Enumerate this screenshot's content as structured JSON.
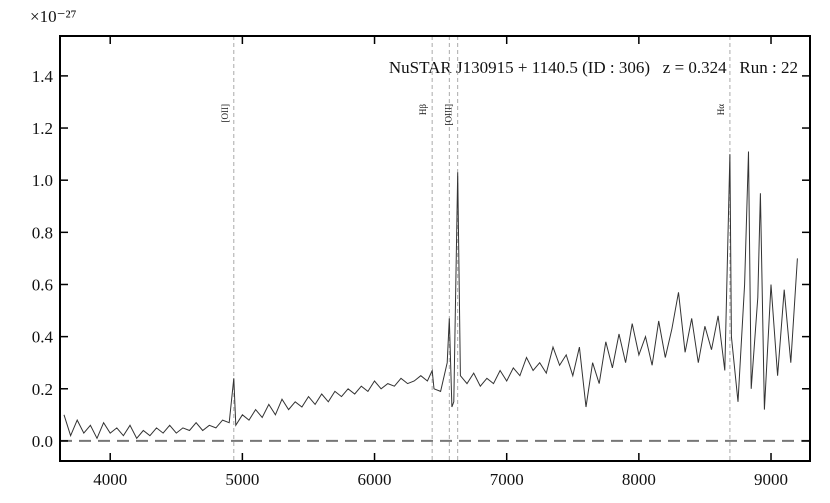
{
  "chart_data": {
    "type": "line",
    "title": "NuSTAR J130915 + 1140.5 (ID : 306)   z = 0.324   Run : 22",
    "y_multiplier": "×10⁻²⁷",
    "x": [
      3650,
      3700,
      3750,
      3800,
      3850,
      3900,
      3950,
      4000,
      4050,
      4100,
      4150,
      4200,
      4250,
      4300,
      4350,
      4400,
      4450,
      4500,
      4550,
      4600,
      4650,
      4700,
      4750,
      4800,
      4850,
      4900,
      4935,
      4950,
      5000,
      5050,
      5100,
      5150,
      5200,
      5250,
      5300,
      5350,
      5400,
      5450,
      5500,
      5550,
      5600,
      5650,
      5700,
      5750,
      5800,
      5850,
      5900,
      5950,
      6000,
      6050,
      6100,
      6150,
      6200,
      6250,
      6300,
      6350,
      6400,
      6436,
      6450,
      6500,
      6550,
      6566,
      6585,
      6600,
      6629,
      6650,
      6700,
      6750,
      6800,
      6850,
      6900,
      6950,
      7000,
      7050,
      7100,
      7150,
      7200,
      7250,
      7300,
      7350,
      7400,
      7450,
      7500,
      7550,
      7600,
      7650,
      7700,
      7750,
      7800,
      7850,
      7900,
      7950,
      8000,
      8050,
      8100,
      8150,
      8200,
      8250,
      8300,
      8350,
      8400,
      8450,
      8500,
      8550,
      8600,
      8650,
      8689,
      8700,
      8750,
      8800,
      8830,
      8850,
      8900,
      8920,
      8950,
      9000,
      9050,
      9100,
      9150,
      9200
    ],
    "series": [
      {
        "color": "#333333",
        "values": [
          0.1,
          0.02,
          0.08,
          0.03,
          0.06,
          0.01,
          0.07,
          0.03,
          0.05,
          0.02,
          0.06,
          0.01,
          0.04,
          0.02,
          0.05,
          0.03,
          0.06,
          0.03,
          0.05,
          0.04,
          0.07,
          0.04,
          0.06,
          0.05,
          0.08,
          0.07,
          0.24,
          0.06,
          0.1,
          0.08,
          0.12,
          0.09,
          0.14,
          0.1,
          0.16,
          0.12,
          0.15,
          0.13,
          0.17,
          0.14,
          0.18,
          0.15,
          0.19,
          0.17,
          0.2,
          0.18,
          0.21,
          0.19,
          0.23,
          0.2,
          0.22,
          0.21,
          0.24,
          0.22,
          0.23,
          0.25,
          0.23,
          0.27,
          0.2,
          0.19,
          0.3,
          0.47,
          0.13,
          0.15,
          1.03,
          0.25,
          0.22,
          0.26,
          0.21,
          0.24,
          0.22,
          0.27,
          0.23,
          0.28,
          0.25,
          0.32,
          0.27,
          0.3,
          0.26,
          0.36,
          0.29,
          0.33,
          0.25,
          0.36,
          0.13,
          0.3,
          0.22,
          0.38,
          0.28,
          0.41,
          0.3,
          0.45,
          0.33,
          0.4,
          0.29,
          0.46,
          0.32,
          0.43,
          0.57,
          0.34,
          0.47,
          0.3,
          0.44,
          0.35,
          0.48,
          0.27,
          1.1,
          0.4,
          0.15,
          0.6,
          1.11,
          0.2,
          0.55,
          0.95,
          0.12,
          0.6,
          0.25,
          0.58,
          0.3,
          0.7
        ]
      }
    ],
    "hline": 0,
    "lines": [
      {
        "label": "[OII]",
        "x": [
          4935
        ]
      },
      {
        "label": "Hβ",
        "x": [
          6436
        ]
      },
      {
        "label": "[OIII]",
        "x": [
          6566,
          6629
        ]
      },
      {
        "label": "Hα",
        "x": [
          8689
        ]
      }
    ],
    "xlim": [
      3620,
      9295
    ],
    "ylim": [
      -0.077,
      1.553
    ],
    "xticks": [
      4000,
      5000,
      6000,
      7000,
      8000,
      9000
    ],
    "yticks": [
      {
        "value": 0,
        "label": "0.0"
      },
      0.2,
      0.4,
      0.6,
      0.8,
      {
        "value": 1,
        "label": "1.0"
      },
      1.2,
      1.4
    ]
  }
}
